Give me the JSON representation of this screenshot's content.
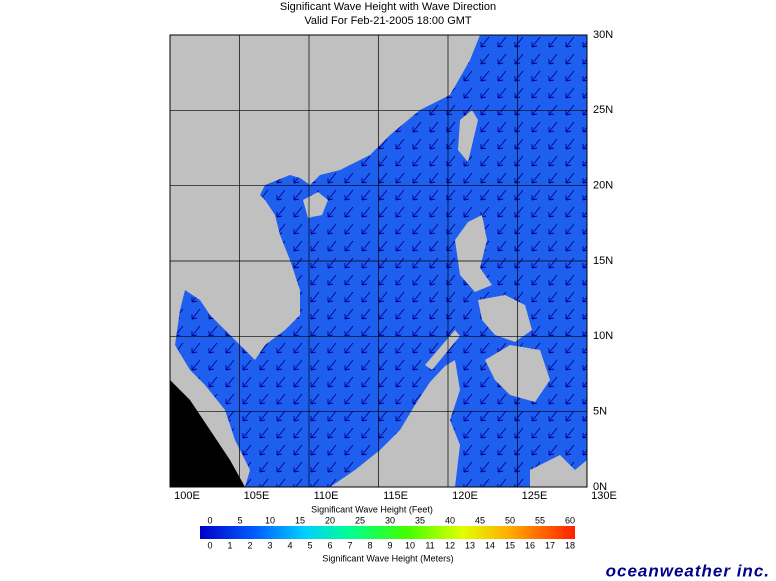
{
  "title": "Significant Wave Height with Wave Direction",
  "subtitle": "Valid For Feb-21-2005 18:00 GMT",
  "lat_labels": [
    "0N",
    "5N",
    "10N",
    "15N",
    "20N",
    "25N",
    "30N"
  ],
  "lon_labels": [
    "100E",
    "105E",
    "110E",
    "115E",
    "120E",
    "125E",
    "130E"
  ],
  "colorbar": {
    "feet_title": "Significant Wave Height (Feet)",
    "feet_ticks": [
      0,
      5,
      10,
      15,
      20,
      25,
      30,
      35,
      40,
      45,
      50,
      55,
      60
    ],
    "meters_title": "Significant Wave Height (Meters)",
    "meters_ticks": [
      0,
      1,
      2,
      3,
      4,
      5,
      6,
      7,
      8,
      9,
      10,
      11,
      12,
      13,
      14,
      15,
      16,
      17,
      18
    ]
  },
  "brand": "oceanweather inc."
}
